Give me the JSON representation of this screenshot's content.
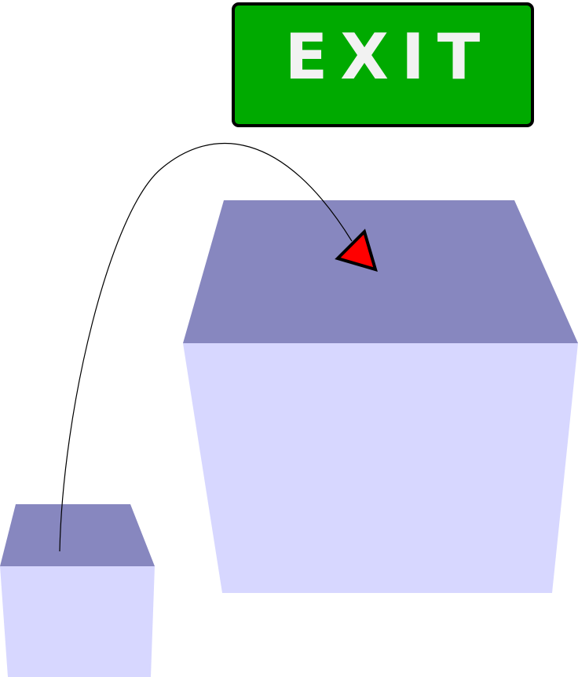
{
  "exit_sign": {
    "label": "EXIT",
    "background_color": "#00aa00",
    "text_color": "#f2f2f2",
    "border_color": "#000000"
  },
  "boxes": {
    "top_face_color": "#8787bf",
    "front_face_color": "#d7d7ff"
  },
  "arrow": {
    "head_color": "#ff0000",
    "line_color": "#000000"
  }
}
